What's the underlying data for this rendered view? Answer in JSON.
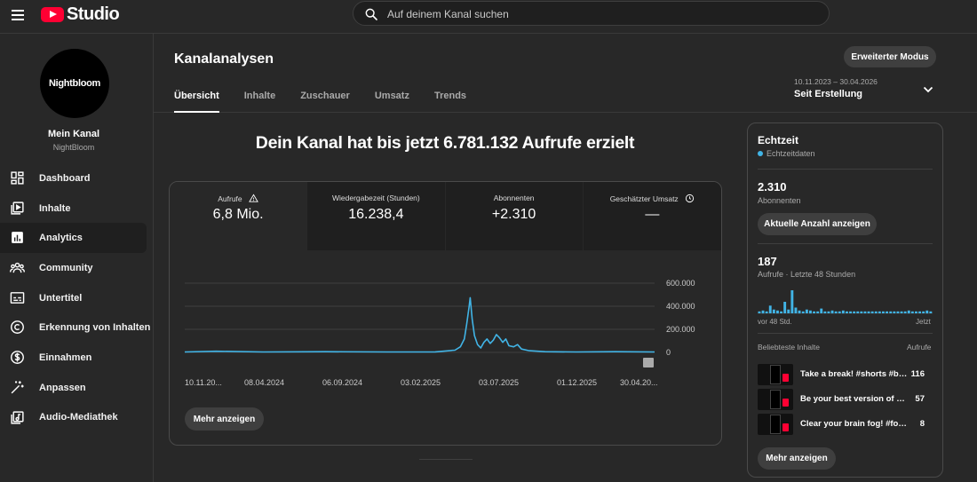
{
  "app": {
    "logo_text": "Studio"
  },
  "search": {
    "placeholder": "Auf deinem Kanal suchen"
  },
  "channel": {
    "avatar_text": "Nightbloom",
    "label": "Mein Kanal",
    "name": "NightBloom"
  },
  "sidebar": {
    "items": [
      {
        "label": "Dashboard",
        "icon": "dashboard-icon"
      },
      {
        "label": "Inhalte",
        "icon": "content-icon"
      },
      {
        "label": "Analytics",
        "icon": "analytics-icon",
        "active": true
      },
      {
        "label": "Community",
        "icon": "community-icon"
      },
      {
        "label": "Untertitel",
        "icon": "subtitles-icon"
      },
      {
        "label": "Erkennung von Inhalten",
        "icon": "copyright-icon"
      },
      {
        "label": "Einnahmen",
        "icon": "dollar-icon"
      },
      {
        "label": "Anpassen",
        "icon": "magic-wand-icon"
      },
      {
        "label": "Audio-Mediathek",
        "icon": "audio-library-icon"
      }
    ]
  },
  "header": {
    "title": "Kanalanalysen",
    "tabs": [
      "Übersicht",
      "Inhalte",
      "Zuschauer",
      "Umsatz",
      "Trends"
    ],
    "active_tab": "Übersicht",
    "advanced_button": "Erweiterter Modus",
    "date_range": "10.11.2023 – 30.04.2026",
    "date_label": "Seit Erstellung"
  },
  "headline": "Dein Kanal hat bis jetzt 6.781.132 Aufrufe erzielt",
  "metrics": [
    {
      "label": "Aufrufe",
      "value": "6,8 Mio.",
      "icon": "warning-icon"
    },
    {
      "label": "Wiedergabezeit (Stunden)",
      "value": "16.238,4"
    },
    {
      "label": "Abonnenten",
      "value": "+2.310"
    },
    {
      "label": "Geschätzter Umsatz",
      "value": "—",
      "icon": "clock-icon"
    }
  ],
  "chart_data": {
    "type": "line",
    "series": [
      {
        "values_description": "daily views",
        "color": "#41b4e6"
      }
    ],
    "x_tick_labels": [
      "10.11.20...",
      "08.04.2024",
      "06.09.2024",
      "03.02.2025",
      "03.07.2025",
      "01.12.2025",
      "30.04.20..."
    ],
    "y_tick_labels": [
      "600.000",
      "400.000",
      "200.000",
      "0"
    ],
    "ylim": [
      0,
      600000
    ],
    "grid": true,
    "points": [
      [
        0,
        0.004
      ],
      [
        0.4,
        0.01
      ],
      [
        1,
        0.004
      ],
      [
        1.8,
        0.006
      ],
      [
        2.6,
        0.004
      ],
      [
        3.2,
        0.005
      ],
      [
        3.45,
        0.02
      ],
      [
        3.52,
        0.05
      ],
      [
        3.57,
        0.12
      ],
      [
        3.6,
        0.25
      ],
      [
        3.63,
        0.4
      ],
      [
        3.645,
        0.49
      ],
      [
        3.67,
        0.3
      ],
      [
        3.7,
        0.15
      ],
      [
        3.74,
        0.07
      ],
      [
        3.78,
        0.04
      ],
      [
        3.82,
        0.09
      ],
      [
        3.86,
        0.12
      ],
      [
        3.9,
        0.08
      ],
      [
        3.94,
        0.11
      ],
      [
        3.98,
        0.16
      ],
      [
        4.02,
        0.13
      ],
      [
        4.06,
        0.09
      ],
      [
        4.1,
        0.12
      ],
      [
        4.14,
        0.06
      ],
      [
        4.2,
        0.05
      ],
      [
        4.25,
        0.07
      ],
      [
        4.3,
        0.03
      ],
      [
        4.4,
        0.015
      ],
      [
        4.6,
        0.006
      ],
      [
        5,
        0.004
      ],
      [
        5.5,
        0.006
      ],
      [
        6,
        0.004
      ]
    ]
  },
  "chart_more_button": "Mehr anzeigen",
  "realtime": {
    "title": "Echtzeit",
    "subtitle": "Echtzeitdaten",
    "subscribers_value": "2.310",
    "subscribers_label": "Abonnenten",
    "count_button": "Aktuelle Anzahl anzeigen",
    "views_value": "187",
    "views_label": "Aufrufe · Letzte 48 Stunden",
    "bar_values": [
      2,
      3,
      2,
      8,
      4,
      3,
      2,
      12,
      4,
      24,
      6,
      3,
      2,
      4,
      3,
      2,
      2,
      5,
      2,
      2,
      3,
      2,
      2,
      3,
      2,
      2,
      2,
      2,
      2,
      2,
      2,
      2,
      2,
      2,
      2,
      2,
      2,
      2,
      2,
      2,
      2,
      3,
      2,
      2,
      2,
      2,
      3,
      2
    ],
    "axis_left": "vor 48 Std.",
    "axis_right": "Jetzt",
    "top_label": "Beliebteste Inhalte",
    "top_column": "Aufrufe",
    "top_videos": [
      {
        "title": "Take a break! #shorts #bra...",
        "views": "116"
      },
      {
        "title": "Be your best version of your...",
        "views": "57"
      },
      {
        "title": "Clear your brain fog! #fog #br...",
        "views": "8"
      }
    ],
    "more_button": "Mehr anzeigen"
  }
}
